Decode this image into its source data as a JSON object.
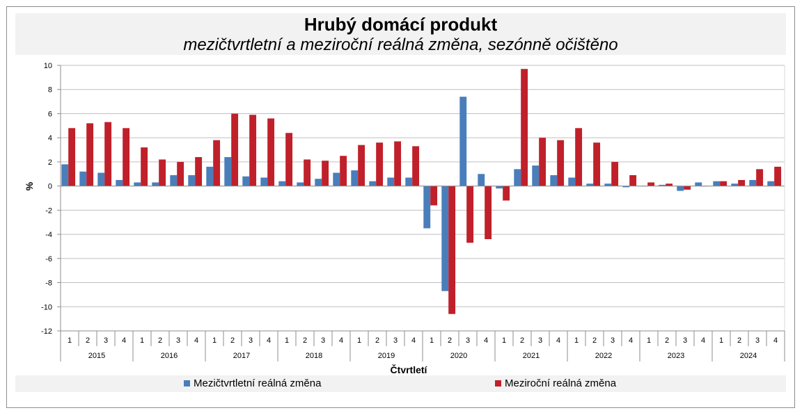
{
  "chart_data": {
    "type": "bar",
    "title": "Hrubý domácí produkt",
    "subtitle": "mezičtvrtletní a meziroční reálná změna, sezónně očištěno",
    "xlabel": "Čtvrtletí",
    "ylabel": "%",
    "ylim": [
      -12,
      10
    ],
    "yticks": [
      10,
      8,
      6,
      4,
      2,
      0,
      -2,
      -4,
      -6,
      -8,
      -10,
      -12
    ],
    "grid": true,
    "legend_position": "bottom",
    "years": [
      "2015",
      "2016",
      "2017",
      "2018",
      "2019",
      "2020",
      "2021",
      "2022",
      "2023",
      "2024"
    ],
    "quarter_labels": [
      "1",
      "2",
      "3",
      "4"
    ],
    "series": [
      {
        "name": "Mezičtvrtletní reálná změna",
        "color": "#4a7ebb",
        "values": [
          1.8,
          1.2,
          1.1,
          0.5,
          0.3,
          0.3,
          0.9,
          0.9,
          1.6,
          2.4,
          0.8,
          0.7,
          0.4,
          0.3,
          0.6,
          1.1,
          1.3,
          0.4,
          0.7,
          0.7,
          -3.5,
          -8.7,
          7.4,
          1.0,
          -0.2,
          1.4,
          1.7,
          0.9,
          0.7,
          0.2,
          0.2,
          -0.1,
          0.0,
          0.1,
          -0.4,
          0.3,
          0.4,
          0.2,
          0.5,
          0.4
        ]
      },
      {
        "name": "Meziroční reálná změna",
        "color": "#c0202a",
        "values": [
          4.8,
          5.2,
          5.3,
          4.8,
          3.2,
          2.2,
          2.0,
          2.4,
          3.8,
          6.0,
          5.9,
          5.6,
          4.4,
          2.2,
          2.1,
          2.5,
          3.4,
          3.6,
          3.7,
          3.3,
          -1.6,
          -10.6,
          -4.7,
          -4.4,
          -1.2,
          9.7,
          4.0,
          3.8,
          4.8,
          3.6,
          2.0,
          0.9,
          0.3,
          0.2,
          -0.3,
          0.0,
          0.4,
          0.5,
          1.4,
          1.6
        ]
      }
    ]
  }
}
